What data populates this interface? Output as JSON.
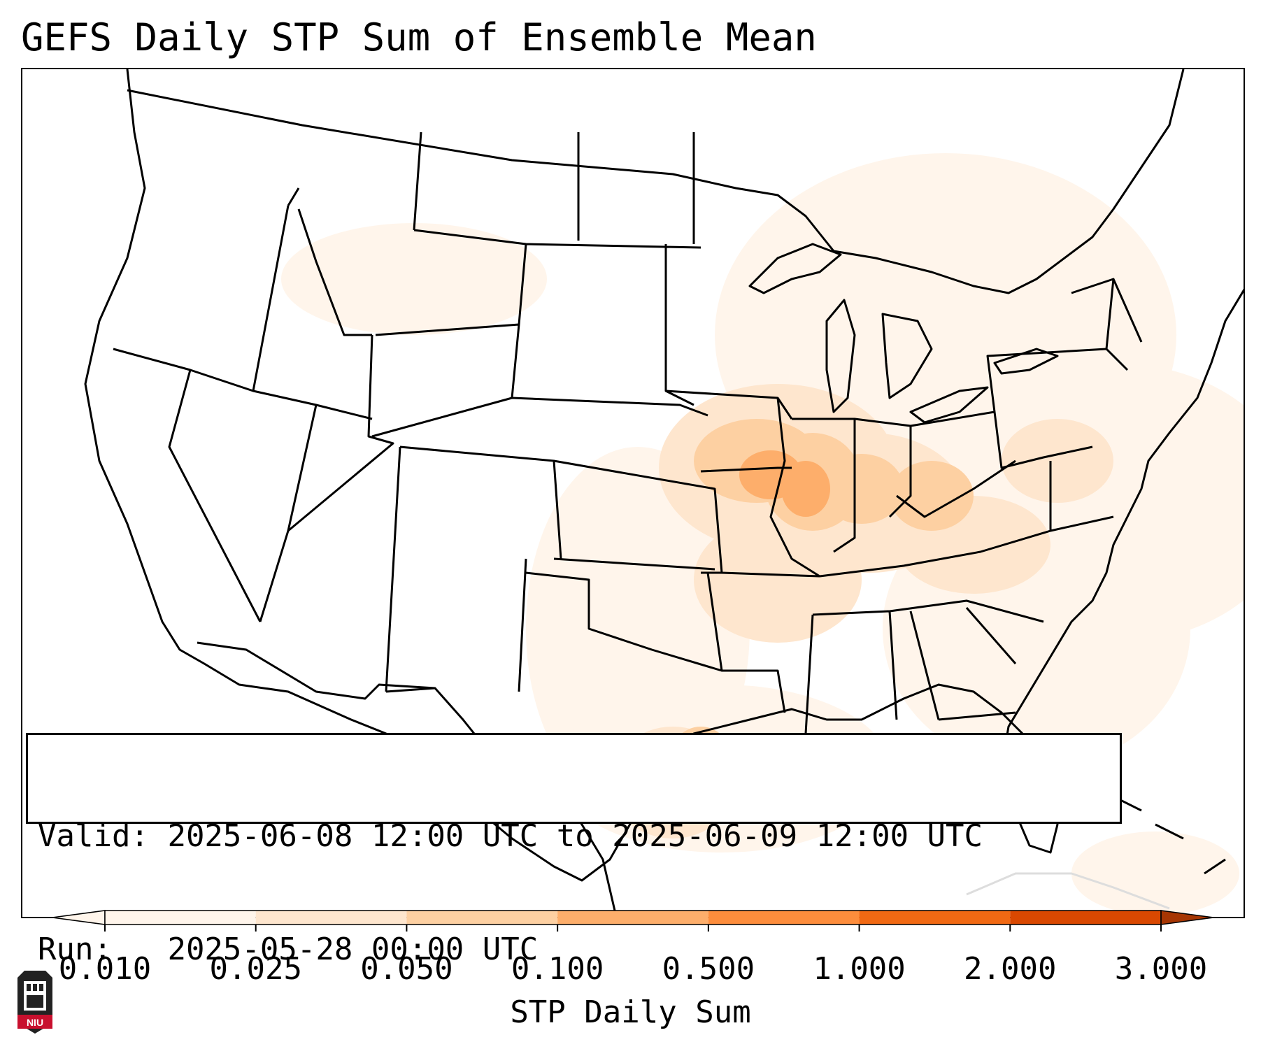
{
  "title": "GEFS Daily STP Sum of Ensemble Mean",
  "info": {
    "valid_label": "Valid:",
    "valid_value": "2025-06-08 12:00 UTC to 2025-06-09 12:00 UTC",
    "run_label": "Run:",
    "run_value": "2025-05-28 00:00 UTC"
  },
  "colorbar": {
    "label": "STP Daily Sum",
    "ticks": [
      "0.010",
      "0.025",
      "0.050",
      "0.100",
      "0.500",
      "1.000",
      "2.000",
      "3.000"
    ],
    "colors": [
      "#fff5eb",
      "#fee6ce",
      "#fdd0a2",
      "#fdae6b",
      "#fd8d3c",
      "#f16913",
      "#d94801",
      "#a63603"
    ],
    "extend": "both"
  },
  "map": {
    "projection": "Lambert conformal, CONUS",
    "features": [
      "coastlines",
      "state borders",
      "national borders"
    ],
    "max_region": "Illinois / Iowa / Missouri / Indiana / Ohio / Kentucky / West Virginia",
    "colors": {
      "line": "#000000",
      "light": "#fff5eb",
      "mid": "#fee6ce",
      "high": "#fdd0a2",
      "peak": "#fdae6b"
    }
  },
  "logo": {
    "text": "NIU",
    "icon": "university-tower-icon",
    "color": "#c8102e"
  }
}
